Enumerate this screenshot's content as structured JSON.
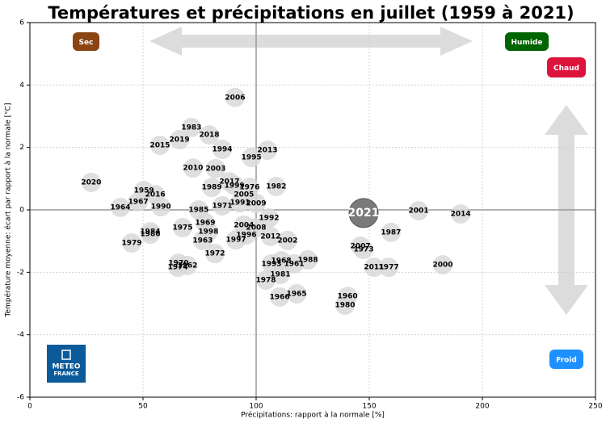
{
  "chart_data": {
    "type": "scatter",
    "title": "Températures et précipitations en juillet (1959 à 2021)",
    "x_label": "Précipitations: rapport à la normale [%]",
    "y_label": "Température moyenne: écart par rapport à la normale [°C]",
    "xlim": [
      0,
      250
    ],
    "ylim": [
      -6,
      6
    ],
    "xticks": [
      0,
      50,
      100,
      150,
      200,
      250
    ],
    "yticks": [
      -6,
      -4,
      -2,
      0,
      2,
      4,
      6
    ],
    "grid": true,
    "color": "#d9d9d9",
    "point_labels": [
      "2006",
      "1983",
      "2018",
      "2019",
      "2015",
      "1994",
      "2013",
      "1995",
      "2010",
      "2003",
      "2020",
      "2017",
      "1999",
      "1976",
      "1982",
      "1989",
      "1959",
      "2016",
      "2005",
      "1967",
      "1991",
      "2009",
      "1964",
      "1990",
      "1971",
      "1985",
      "1992",
      "1969",
      "2004",
      "2008",
      "1975",
      "1998",
      "1984",
      "1986",
      "1996",
      "1963",
      "1997",
      "2012",
      "2002",
      "1979",
      "1972",
      "1968",
      "1988",
      "1993",
      "1961",
      "1970",
      "1962",
      "1974",
      "1981",
      "1978",
      "1965",
      "1966",
      "1960",
      "1980",
      "2007",
      "1973",
      "2011",
      "1977",
      "2000",
      "1987",
      "2001",
      "2014"
    ],
    "x": [
      90.7,
      71.4,
      79.3,
      66.1,
      57.5,
      85,
      105,
      97.9,
      72.1,
      82.1,
      27.1,
      88.2,
      90.4,
      97.1,
      108.9,
      80.4,
      50.4,
      55.4,
      94.6,
      47.9,
      92.9,
      100,
      40,
      57.9,
      85,
      74.6,
      105.7,
      77.5,
      94.6,
      100,
      67.5,
      78.9,
      53.2,
      53.2,
      95.7,
      76.4,
      91.1,
      106.4,
      113.9,
      45,
      81.8,
      111.1,
      122.9,
      106.8,
      116.8,
      65.7,
      69.6,
      65.4,
      110.7,
      104.3,
      117.9,
      110.4,
      140.4,
      139.3,
      146.1,
      147.5,
      152.1,
      158.6,
      182.5,
      159.6,
      171.8,
      190.4
    ],
    "values": [
      3.6,
      2.64,
      2.4,
      2.25,
      2.07,
      1.94,
      1.91,
      1.68,
      1.34,
      1.32,
      0.88,
      0.9,
      0.78,
      0.72,
      0.75,
      0.72,
      0.62,
      0.49,
      0.49,
      0.26,
      0.23,
      0.21,
      0.08,
      0.1,
      0.13,
      0,
      -0.26,
      -0.41,
      -0.49,
      -0.57,
      -0.57,
      -0.7,
      -0.7,
      -0.78,
      -0.8,
      -0.98,
      -0.96,
      -0.85,
      -0.98,
      -1.06,
      -1.4,
      -1.63,
      -1.6,
      -1.73,
      -1.73,
      -1.71,
      -1.78,
      -1.84,
      -2.07,
      -2.25,
      -2.69,
      -2.79,
      -2.77,
      -3.05,
      -1.16,
      -1.27,
      -1.84,
      -1.84,
      -1.76,
      -0.72,
      -0.03,
      -0.13
    ],
    "highlight": {
      "label": "2021",
      "x": 147.5,
      "y": -0.1,
      "color": "#7a7a7a"
    },
    "annotations": [
      {
        "text": "Sec",
        "color": "#8b4513"
      },
      {
        "text": "Humide",
        "color": "#006400"
      },
      {
        "text": "Chaud",
        "color": "#dc143c"
      },
      {
        "text": "Froid",
        "color": "#1e90ff"
      }
    ],
    "logo": {
      "lines": [
        "METEO",
        "FRANCE"
      ],
      "color": "#0b5a9a"
    }
  }
}
